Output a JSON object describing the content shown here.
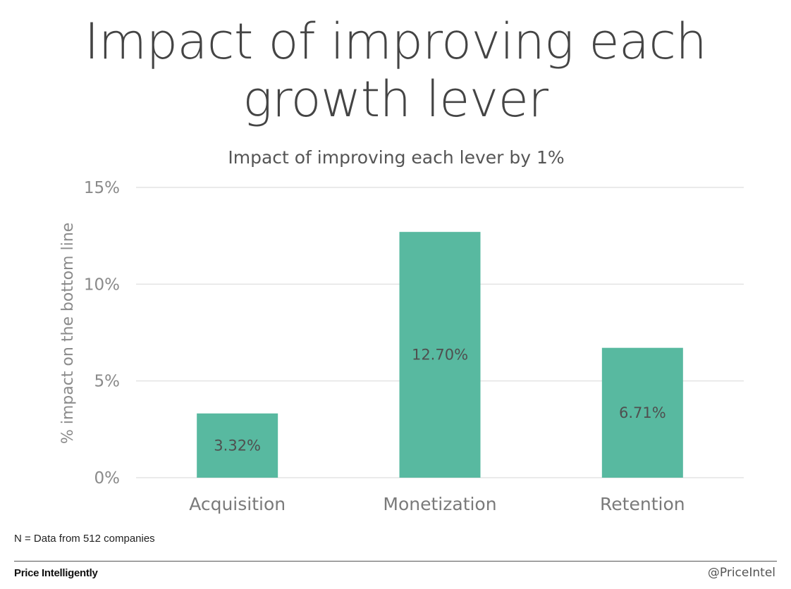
{
  "slide": {
    "title": "Impact of improving each growth lever",
    "footnote": "N = Data from 512 companies",
    "brand": "Price Intelligently",
    "handle": "@PriceIntel"
  },
  "colors": {
    "bar": "#58b9a0",
    "grid": "#e3e3e3",
    "text": "#4a4a4a"
  },
  "chart_data": {
    "type": "bar",
    "title": "Impact of improving each lever by 1%",
    "xlabel": "",
    "ylabel": "% impact on the bottom line",
    "categories": [
      "Acquisition",
      "Monetization",
      "Retention"
    ],
    "values": [
      3.32,
      12.7,
      6.71
    ],
    "value_labels": [
      "3.32%",
      "12.70%",
      "6.71%"
    ],
    "ylim": [
      0,
      15
    ],
    "yticks": [
      0,
      5,
      10,
      15
    ],
    "ytick_labels": [
      "0%",
      "5%",
      "10%",
      "15%"
    ],
    "grid": true,
    "legend": "none"
  }
}
